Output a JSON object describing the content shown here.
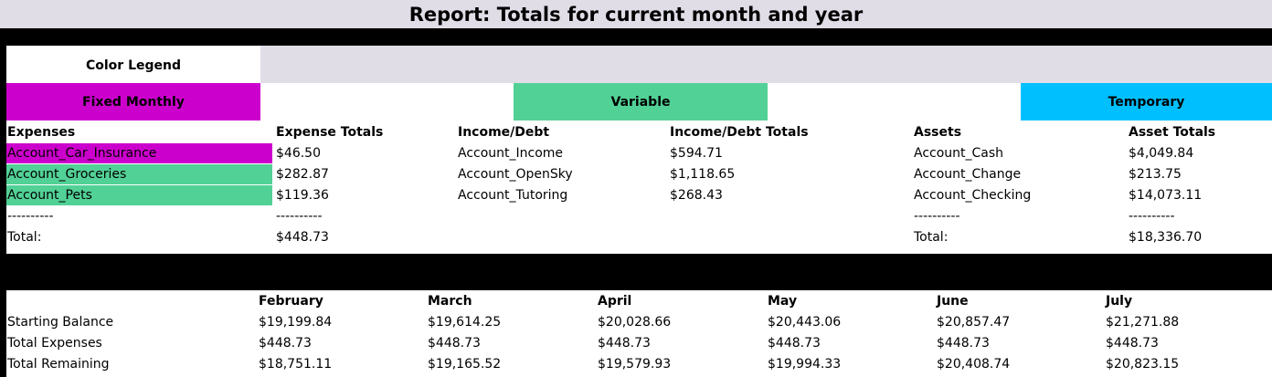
{
  "title": "Report: Totals for current month and year",
  "legend": {
    "title": "Color Legend",
    "fixed": "Fixed Monthly",
    "variable": "Variable",
    "temporary": "Temporary"
  },
  "colors": {
    "fixed": "#cc00cc",
    "variable": "#52d196",
    "temporary": "#00bfff",
    "lavender": "#e1dde7"
  },
  "expenses": {
    "header": "Expenses",
    "totals_header": "Expense Totals",
    "rows": [
      {
        "name": "Account_Car_Insurance",
        "amount": "$46.50"
      },
      {
        "name": "Account_Groceries",
        "amount": "$282.87"
      },
      {
        "name": "Account_Pets",
        "amount": "$119.36"
      }
    ],
    "separator": "----------",
    "total_label": "Total:",
    "total": "$448.73"
  },
  "income": {
    "header": "Income/Debt",
    "totals_header": "Income/Debt Totals",
    "rows": [
      {
        "name": "Account_Income",
        "amount": "$594.71"
      },
      {
        "name": "Account_OpenSky",
        "amount": "$1,118.65"
      },
      {
        "name": "Account_Tutoring",
        "amount": "$268.43"
      }
    ]
  },
  "assets": {
    "header": "Assets",
    "totals_header": "Asset Totals",
    "rows": [
      {
        "name": "Account_Cash",
        "amount": "$4,049.84"
      },
      {
        "name": "Account_Change",
        "amount": "$213.75"
      },
      {
        "name": "Account_Checking",
        "amount": "$14,073.11"
      }
    ],
    "separator": "----------",
    "total_label": "Total:",
    "total": "$18,336.70"
  },
  "monthly": {
    "row_labels": [
      "Starting Balance",
      "Total Expenses",
      "Total Remaining"
    ],
    "months": [
      {
        "name": "February",
        "values": [
          "$19,199.84",
          "$448.73",
          "$18,751.11"
        ]
      },
      {
        "name": "March",
        "values": [
          "$19,614.25",
          "$448.73",
          "$19,165.52"
        ]
      },
      {
        "name": "April",
        "values": [
          "$20,028.66",
          "$448.73",
          "$19,579.93"
        ]
      },
      {
        "name": "May",
        "values": [
          "$20,443.06",
          "$448.73",
          "$19,994.33"
        ]
      },
      {
        "name": "June",
        "values": [
          "$20,857.47",
          "$448.73",
          "$20,408.74"
        ]
      },
      {
        "name": "July",
        "values": [
          "$21,271.88",
          "$448.73",
          "$20,823.15"
        ]
      }
    ]
  }
}
